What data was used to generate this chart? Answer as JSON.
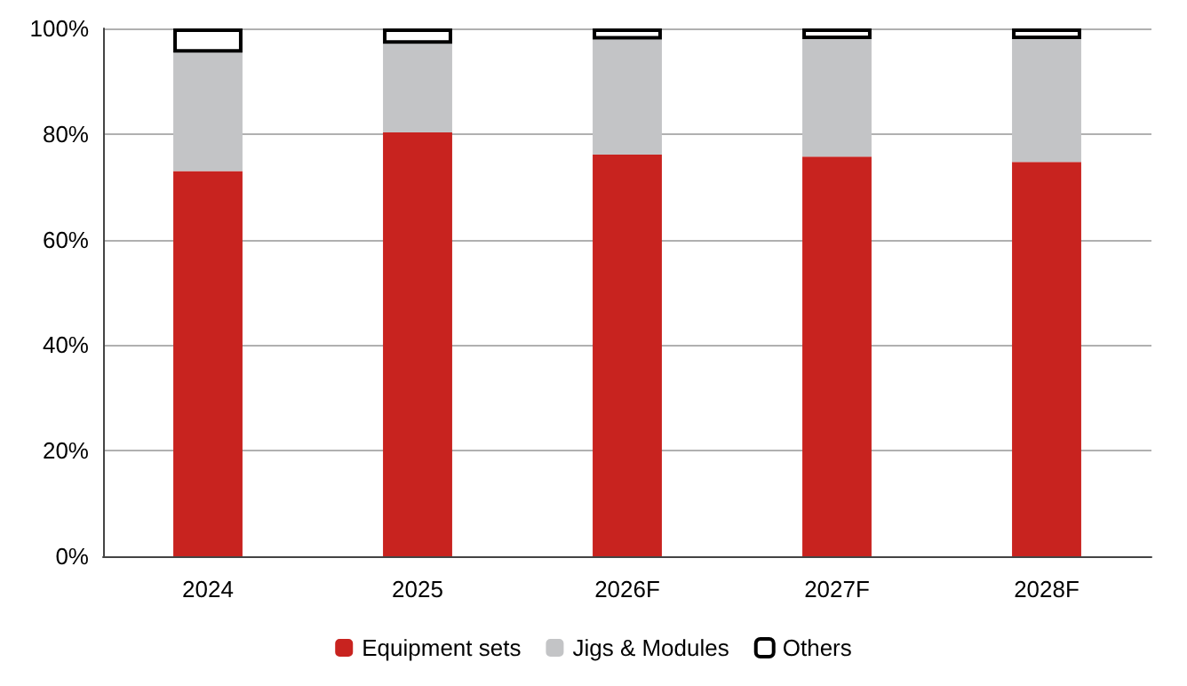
{
  "chart_data": {
    "type": "bar",
    "stacked": true,
    "categories": [
      "2024",
      "2025",
      "2026F",
      "2027F",
      "2028F"
    ],
    "series": [
      {
        "name": "Equipment sets",
        "color": "#c8231f",
        "values": [
          73.0,
          80.3,
          76.1,
          75.7,
          74.7
        ]
      },
      {
        "name": "Jigs & Modules",
        "color": "#c3c4c6",
        "values": [
          22.4,
          16.8,
          21.8,
          22.3,
          23.3
        ]
      },
      {
        "name": "Others",
        "color": "#ffffff",
        "values": [
          4.6,
          2.9,
          2.1,
          2.0,
          2.0
        ]
      }
    ],
    "ylim": [
      0,
      100
    ],
    "yticks": [
      {
        "value": 0,
        "label": "0%"
      },
      {
        "value": 20,
        "label": "20%"
      },
      {
        "value": 40,
        "label": "40%"
      },
      {
        "value": 60,
        "label": "60%"
      },
      {
        "value": 80,
        "label": "80%"
      },
      {
        "value": 100,
        "label": "100%"
      }
    ],
    "grid": "y",
    "legend": "bottom"
  }
}
